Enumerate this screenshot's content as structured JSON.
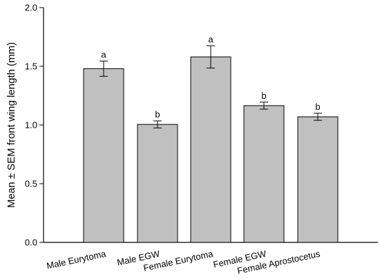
{
  "chart_data": {
    "type": "bar",
    "categories": [
      "Male Eurytoma",
      "Male EGW",
      "Female Eurytoma",
      "Female EGW",
      "Female Aprostocetus"
    ],
    "values": [
      1.48,
      1.005,
      1.58,
      1.165,
      1.07
    ],
    "errors": [
      0.065,
      0.03,
      0.095,
      0.03,
      0.03
    ],
    "significance_letters": [
      "a",
      "b",
      "a",
      "b",
      "b"
    ],
    "title": "",
    "xlabel": "",
    "ylabel": "Mean ± SEM front wing length (mm)",
    "ylim": [
      0,
      2.0
    ],
    "yticks": [
      0.0,
      0.5,
      1.0,
      1.5,
      2.0
    ],
    "ytick_labels": [
      "0.0",
      "0.5",
      "1.0",
      "1.5",
      "2.0"
    ],
    "grid": false,
    "colors": {
      "bar_fill": "#c0c0c0",
      "bar_stroke": "#000000",
      "axis": "#000000"
    }
  }
}
